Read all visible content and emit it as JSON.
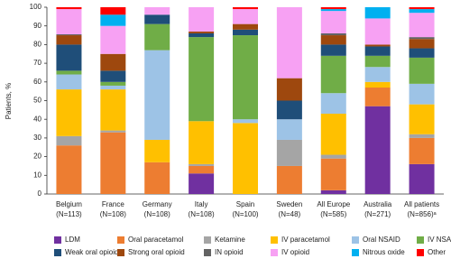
{
  "chart_data": {
    "type": "stacked_bar",
    "y_label": "Patients, %",
    "categories": [
      "Belgium",
      "France",
      "Germany",
      "Italy",
      "Spain",
      "Sweden",
      "All Europe",
      "Australia",
      "All patients"
    ],
    "category_counts": [
      "(N=113)",
      "(N=108)",
      "(N=108)",
      "(N=108)",
      "(N=100)",
      "(N=48)",
      "(N=585)",
      "(N=271)",
      "(N=856)ᵃ"
    ],
    "ylim": [
      0,
      100
    ],
    "yticks": [
      0,
      10,
      20,
      30,
      40,
      50,
      60,
      70,
      80,
      90,
      100
    ],
    "series": [
      {
        "name": "LDM",
        "color": "#7030a0",
        "values": [
          0,
          0,
          0,
          11,
          0,
          0,
          2,
          47,
          16
        ]
      },
      {
        "name": "Oral paracetamol",
        "color": "#ed7d31",
        "values": [
          26,
          33,
          17,
          4,
          0,
          15,
          17,
          10,
          14
        ]
      },
      {
        "name": "Ketamine",
        "color": "#a5a5a5",
        "values": [
          5,
          1,
          0,
          1,
          0,
          14,
          2,
          0,
          2
        ]
      },
      {
        "name": "IV paracetamol",
        "color": "#ffc000",
        "values": [
          25,
          22,
          12,
          23,
          38,
          0,
          22,
          3,
          16
        ]
      },
      {
        "name": "Oral NSAID",
        "color": "#9dc3e6",
        "values": [
          8,
          2,
          48,
          0,
          2,
          11,
          11,
          8,
          11
        ]
      },
      {
        "name": "IV NSAID",
        "color": "#70ad47",
        "values": [
          2,
          2,
          14,
          45,
          45,
          0,
          20,
          6,
          14
        ]
      },
      {
        "name": "Weak oral opioid",
        "color": "#1f4e79",
        "values": [
          14,
          6,
          5,
          2,
          3,
          10,
          6,
          5,
          5
        ]
      },
      {
        "name": "Strong oral opioid",
        "color": "#9e480e",
        "values": [
          5,
          9,
          0,
          1,
          3,
          12,
          5,
          1,
          5
        ]
      },
      {
        "name": "IN opioid",
        "color": "#636363",
        "values": [
          0.5,
          0,
          0,
          0,
          0,
          0,
          1,
          0,
          1
        ]
      },
      {
        "name": "IV opioid",
        "color": "#f7a1f3",
        "values": [
          13.5,
          15,
          4,
          13,
          8,
          38,
          12,
          14,
          13
        ]
      },
      {
        "name": "Nitrous oxide",
        "color": "#00b0f0",
        "values": [
          0,
          6,
          0,
          0,
          0,
          0,
          1,
          6,
          2
        ]
      },
      {
        "name": "Other",
        "color": "#ff0000",
        "values": [
          1,
          4,
          0,
          0,
          1,
          0,
          1,
          0,
          1
        ]
      }
    ]
  }
}
